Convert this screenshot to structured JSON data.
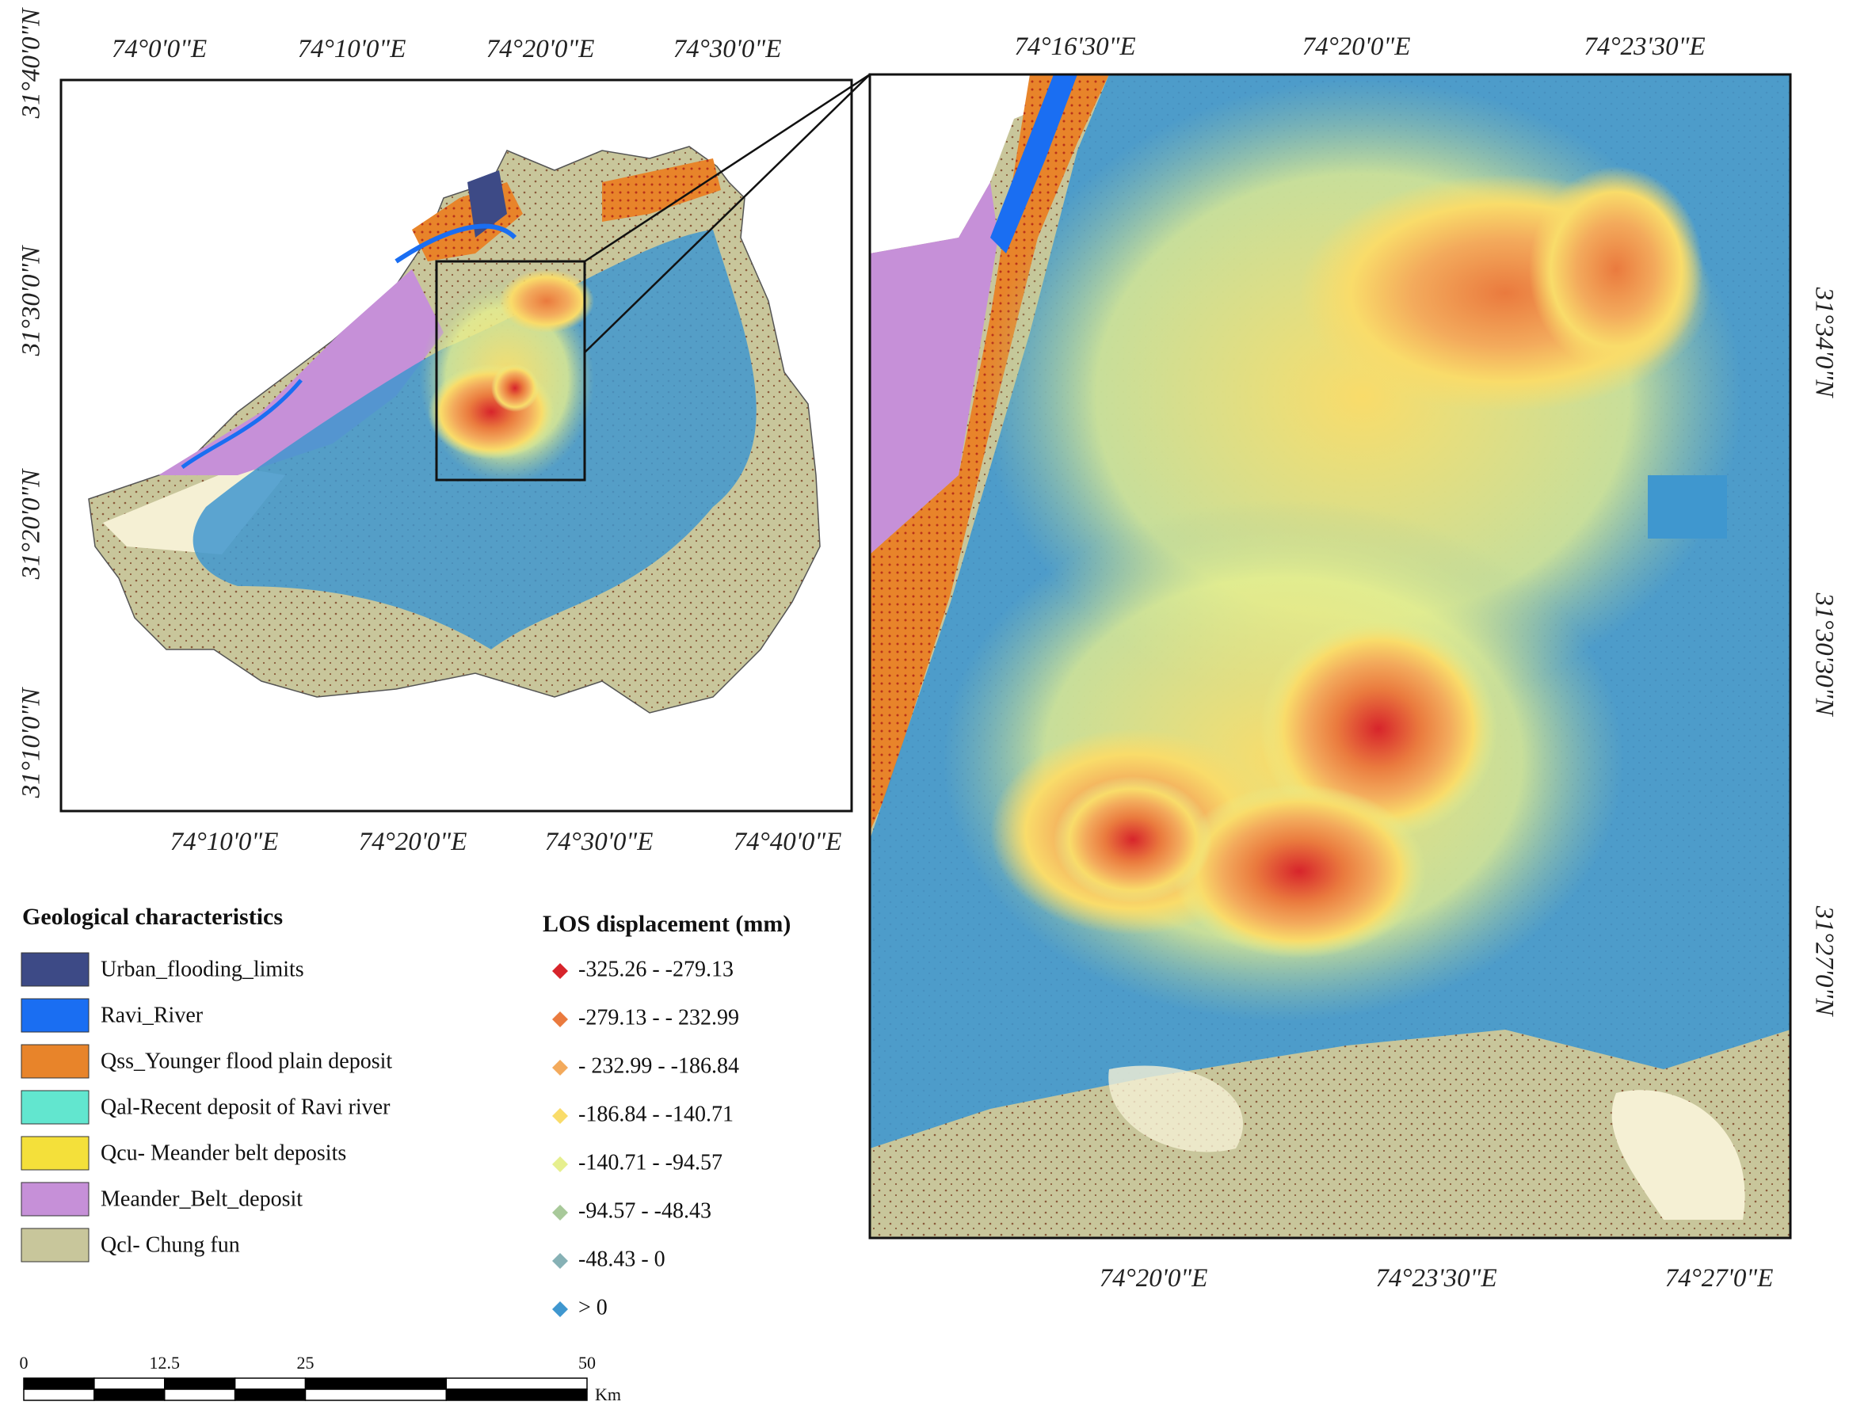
{
  "overview_map": {
    "top_labels": [
      "74°0'0\"E",
      "74°10'0\"E",
      "74°20'0\"E",
      "74°30'0\"E"
    ],
    "bottom_labels": [
      "74°10'0\"E",
      "74°20'0\"E",
      "74°30'0\"E",
      "74°40'0\"E"
    ],
    "left_labels": [
      "31°40'0\"N",
      "31°30'0\"N",
      "31°20'0\"N",
      "31°10'0\"N"
    ]
  },
  "inset_map": {
    "top_labels": [
      "74°16'30\"E",
      "74°20'0\"E",
      "74°23'30\"E"
    ],
    "bottom_labels": [
      "74°20'0\"E",
      "74°23'30\"E",
      "74°27'0\"E"
    ],
    "right_labels": [
      "31°34'0\"N",
      "31°30'30\"N",
      "31°27'0\"N"
    ]
  },
  "geology_legend": {
    "title": "Geological characteristics",
    "items": [
      {
        "label": "Urban_flooding_limits",
        "color": "#3d4a86"
      },
      {
        "label": "Ravi_River",
        "color": "#1a6ef2"
      },
      {
        "label": "Qss_Younger flood plain deposit",
        "color": "#e8842a"
      },
      {
        "label": "Qal-Recent deposit of Ravi river",
        "color": "#62e6cf"
      },
      {
        "label": "Qcu- Meander belt deposits",
        "color": "#f4e03a"
      },
      {
        "label": "Meander_Belt_deposit",
        "color": "#c690d8"
      },
      {
        "label": "Qcl- Chung fun",
        "color": "#c8c69b"
      }
    ]
  },
  "los_legend": {
    "title": "LOS displacement (mm)",
    "items": [
      {
        "label": "-325.26 - -279.13",
        "color": "#d7242b"
      },
      {
        "label": "-279.13 - - 232.99",
        "color": "#ea7a3e"
      },
      {
        "label": "- 232.99 - -186.84",
        "color": "#f3aa5c"
      },
      {
        "label": "-186.84 - -140.71",
        "color": "#f9dc6a"
      },
      {
        "label": "-140.71 - -94.57",
        "color": "#e6ef8e"
      },
      {
        "label": "-94.57 - -48.43",
        "color": "#a8c99a"
      },
      {
        "label": "-48.43 - 0",
        "color": "#86b1b5"
      },
      {
        "label": "> 0",
        "color": "#3f97cf"
      }
    ]
  },
  "scale_bar": {
    "ticks": [
      0,
      12.5,
      25,
      50
    ],
    "unit": "Km"
  }
}
